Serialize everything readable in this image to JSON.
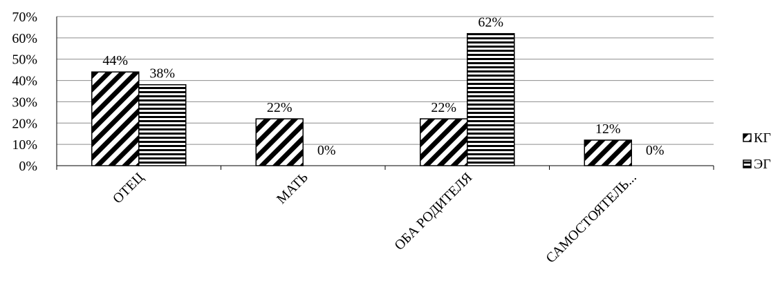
{
  "chart_data": {
    "type": "bar",
    "title": "",
    "xlabel": "",
    "ylabel": "",
    "ylim": [
      0,
      70
    ],
    "y_ticks": [
      "0%",
      "10%",
      "20%",
      "30%",
      "40%",
      "50%",
      "60%",
      "70%"
    ],
    "grid": true,
    "legend_position": "right",
    "categories": [
      "ОТЕЦ",
      "МАТЬ",
      "ОБА РОДИТЕЛЯ",
      "САМОСТОЯТЕЛЬ..."
    ],
    "series": [
      {
        "name": "КГ",
        "values": [
          44,
          22,
          22,
          12
        ],
        "labels": [
          "44%",
          "22%",
          "22%",
          "12%"
        ],
        "pattern": "diagonal-stripes"
      },
      {
        "name": "ЭГ",
        "values": [
          38,
          0,
          62,
          0
        ],
        "labels": [
          "38%",
          "0%",
          "62%",
          "0%"
        ],
        "pattern": "horizontal-stripes"
      }
    ]
  }
}
